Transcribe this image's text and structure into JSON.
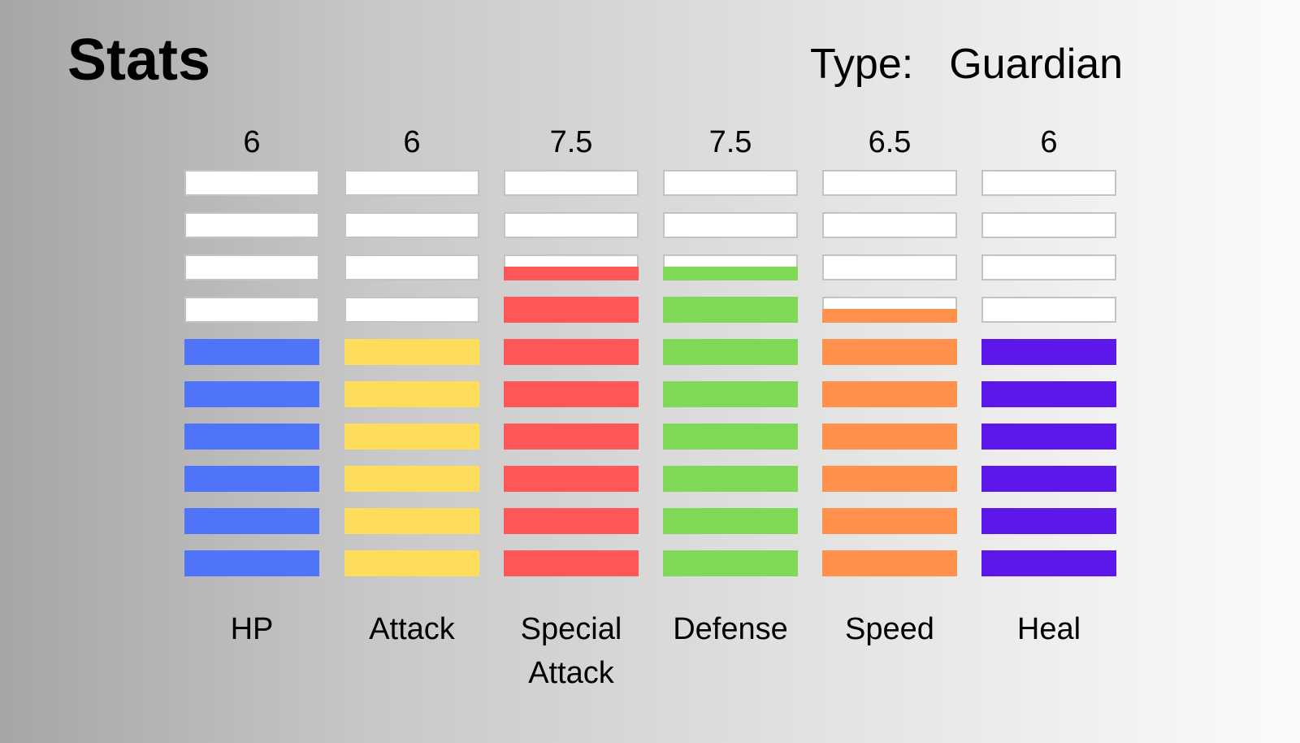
{
  "header": {
    "title": "Stats",
    "type_label": "Type:",
    "type_value": "Guardian"
  },
  "chart_data": {
    "type": "bar",
    "segments_per_bar": 10,
    "empty_color": "#ffffff",
    "categories": [
      [
        "HP"
      ],
      [
        "Attack"
      ],
      [
        "Special",
        "Attack"
      ],
      [
        "Defense"
      ],
      [
        "Speed"
      ],
      [
        "Heal"
      ]
    ],
    "value_labels": [
      "6",
      "6",
      "7.5",
      "7.5",
      "6.5",
      "6"
    ],
    "values": [
      6,
      6,
      7.5,
      7.5,
      6.5,
      6
    ],
    "colors": [
      "#4f74fa",
      "#ffdd5c",
      "#ff5658",
      "#7fd957",
      "#ff914d",
      "#5e17eb"
    ]
  }
}
